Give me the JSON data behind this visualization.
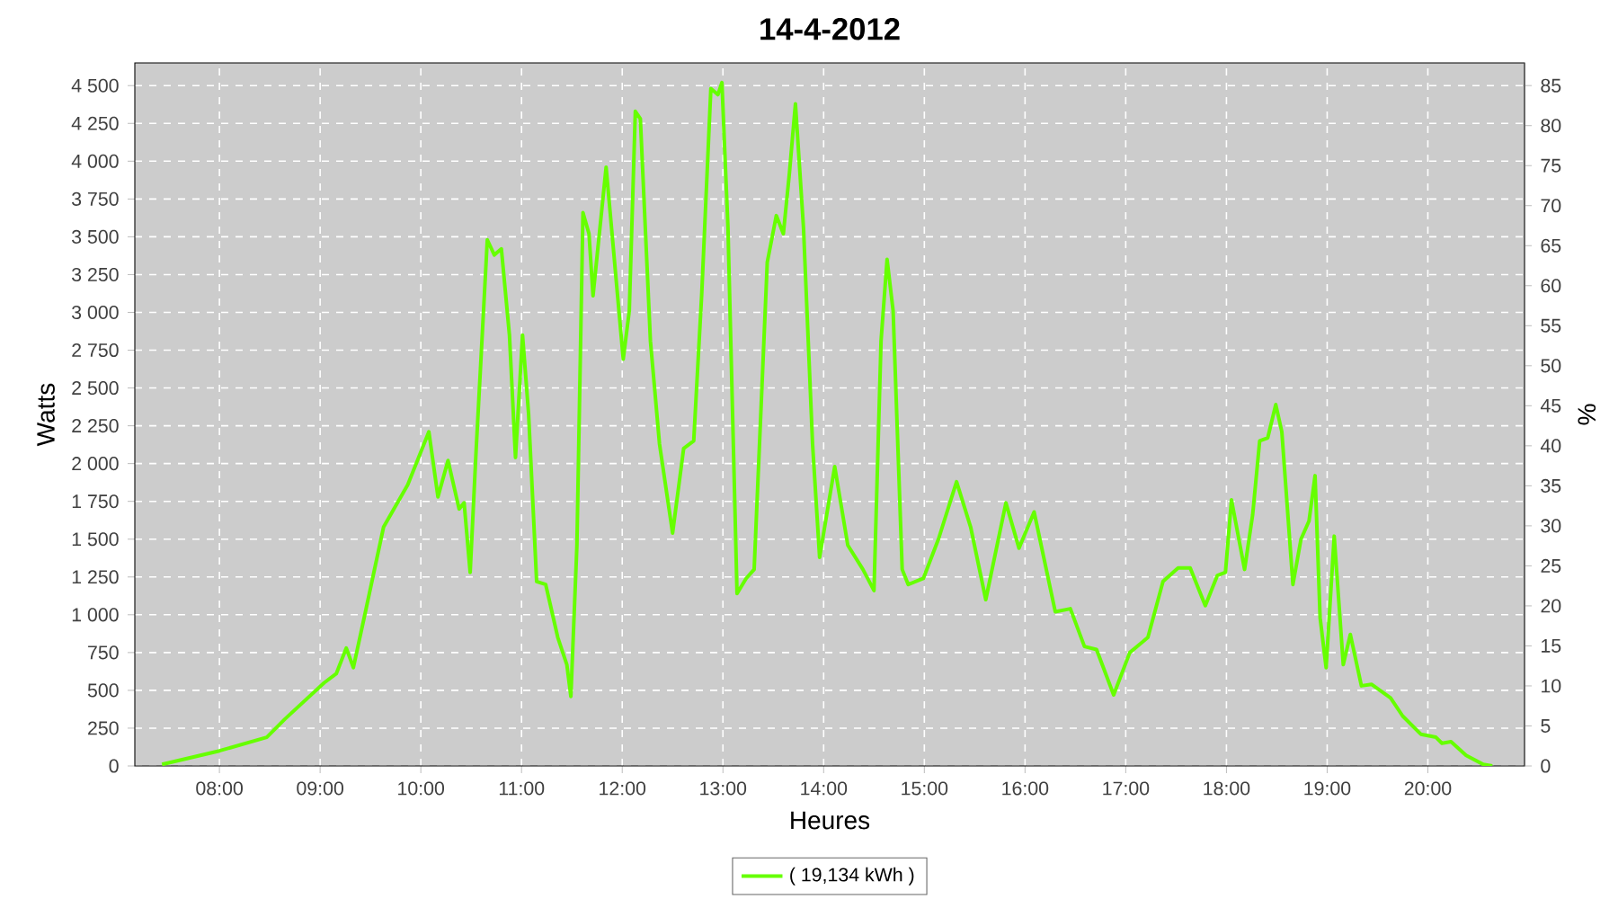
{
  "chart_data": {
    "type": "line",
    "title": "14-4-2012",
    "xlabel": "Heures",
    "ylabel": "Watts",
    "y2label": "%",
    "xlim": [
      7.16,
      20.96
    ],
    "xticks": [
      {
        "value": 8,
        "label": "08:00"
      },
      {
        "value": 9,
        "label": "09:00"
      },
      {
        "value": 10,
        "label": "10:00"
      },
      {
        "value": 11,
        "label": "11:00"
      },
      {
        "value": 12,
        "label": "12:00"
      },
      {
        "value": 13,
        "label": "13:00"
      },
      {
        "value": 14,
        "label": "14:00"
      },
      {
        "value": 15,
        "label": "15:00"
      },
      {
        "value": 16,
        "label": "16:00"
      },
      {
        "value": 17,
        "label": "17:00"
      },
      {
        "value": 18,
        "label": "18:00"
      },
      {
        "value": 19,
        "label": "19:00"
      },
      {
        "value": 20,
        "label": "20:00"
      }
    ],
    "ylim": [
      0,
      4650
    ],
    "yticks": [
      0,
      250,
      500,
      750,
      {
        "value": 1000,
        "label": "1 000"
      },
      {
        "value": 1250,
        "label": "1 250"
      },
      {
        "value": 1500,
        "label": "1 500"
      },
      {
        "value": 1750,
        "label": "1 750"
      },
      {
        "value": 2000,
        "label": "2 000"
      },
      {
        "value": 2250,
        "label": "2 250"
      },
      {
        "value": 2500,
        "label": "2 500"
      },
      {
        "value": 2750,
        "label": "2 750"
      },
      {
        "value": 3000,
        "label": "3 000"
      },
      {
        "value": 3250,
        "label": "3 250"
      },
      {
        "value": 3500,
        "label": "3 500"
      },
      {
        "value": 3750,
        "label": "3 750"
      },
      {
        "value": 4000,
        "label": "4 000"
      },
      {
        "value": 4250,
        "label": "4 250"
      },
      {
        "value": 4500,
        "label": "4 500"
      }
    ],
    "y2lim": [
      0,
      87.83
    ],
    "y2ticks": [
      0,
      5,
      10,
      15,
      20,
      25,
      30,
      35,
      40,
      45,
      50,
      55,
      60,
      65,
      70,
      75,
      80,
      85
    ],
    "grid": true,
    "legend": "bottom",
    "marker": "none",
    "line_style": "solid",
    "series": [
      {
        "name": "( 19,134 kWh )",
        "color": "#66ff00",
        "x": [
          7.43,
          8.0,
          8.47,
          8.65,
          9.04,
          9.16,
          9.26,
          9.33,
          9.45,
          9.63,
          9.87,
          10.08,
          10.17,
          10.27,
          10.38,
          10.43,
          10.49,
          10.55,
          10.66,
          10.73,
          10.8,
          10.88,
          10.94,
          11.01,
          11.07,
          11.15,
          11.24,
          11.36,
          11.45,
          11.49,
          11.55,
          11.61,
          11.67,
          11.71,
          11.84,
          12.01,
          12.07,
          12.13,
          12.18,
          12.28,
          12.37,
          12.5,
          12.61,
          12.71,
          12.79,
          12.88,
          12.95,
          12.99,
          13.05,
          13.14,
          13.23,
          13.31,
          13.44,
          13.53,
          13.6,
          13.66,
          13.72,
          13.8,
          13.89,
          13.96,
          14.11,
          14.24,
          14.39,
          14.5,
          14.57,
          14.63,
          14.69,
          14.78,
          14.84,
          14.99,
          15.14,
          15.32,
          15.46,
          15.61,
          15.81,
          15.94,
          16.09,
          16.3,
          16.45,
          16.59,
          16.71,
          16.88,
          17.04,
          17.22,
          17.37,
          17.52,
          17.64,
          17.79,
          17.91,
          17.99,
          18.05,
          18.18,
          18.26,
          18.33,
          18.41,
          18.49,
          18.55,
          18.66,
          18.74,
          18.82,
          18.88,
          18.93,
          18.99,
          19.07,
          19.16,
          19.23,
          19.34,
          19.44,
          19.63,
          19.75,
          19.93,
          20.08,
          20.14,
          20.23,
          20.38,
          20.55,
          20.64
        ],
        "values": [
          10,
          100,
          190,
          310,
          550,
          610,
          780,
          650,
          1020,
          1580,
          1860,
          2210,
          1780,
          2020,
          1700,
          1740,
          1280,
          2100,
          3480,
          3380,
          3420,
          2850,
          2040,
          2850,
          2330,
          1220,
          1200,
          850,
          670,
          460,
          1460,
          3660,
          3520,
          3110,
          3960,
          2690,
          3010,
          4330,
          4280,
          2810,
          2130,
          1540,
          2100,
          2150,
          3130,
          4480,
          4440,
          4520,
          3560,
          1140,
          1240,
          1300,
          3330,
          3640,
          3520,
          3920,
          4380,
          3560,
          2130,
          1380,
          1980,
          1460,
          1300,
          1160,
          2810,
          3350,
          3010,
          1300,
          1200,
          1240,
          1500,
          1880,
          1580,
          1100,
          1740,
          1440,
          1680,
          1020,
          1040,
          790,
          770,
          470,
          750,
          850,
          1220,
          1310,
          1310,
          1060,
          1260,
          1280,
          1760,
          1300,
          1660,
          2150,
          2170,
          2390,
          2210,
          1200,
          1500,
          1620,
          1920,
          980,
          650,
          1520,
          670,
          870,
          530,
          540,
          450,
          330,
          210,
          190,
          150,
          160,
          70,
          10,
          0
        ]
      }
    ]
  }
}
